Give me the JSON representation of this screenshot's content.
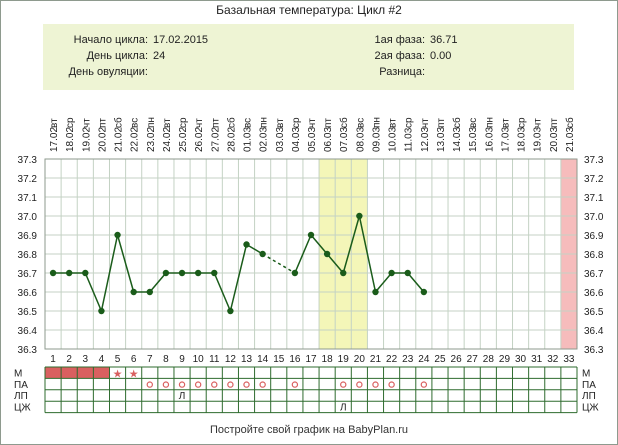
{
  "header": {
    "title": "Базальная температура: Цикл #2",
    "cycle_start_label": "Начало цикла:",
    "cycle_start_value": "17.02.2015",
    "cycle_day_label": "День цикла:",
    "cycle_day_value": "24",
    "ovulation_label": "День овуляции:",
    "ovulation_value": "",
    "phase1_label": "1ая фаза:",
    "phase1_value": "36.71",
    "phase2_label": "2ая фаза:",
    "phase2_value": "0.00",
    "diff_label": "Разница:",
    "diff_value": ""
  },
  "footer": {
    "text": "Постройте свой график на BabyPlan.ru"
  },
  "chart_data": {
    "type": "line",
    "dates": [
      "17.02",
      "18.02",
      "19.02",
      "20.02",
      "21.02",
      "22.02",
      "23.02",
      "24.02",
      "25.02",
      "26.02",
      "27.02",
      "28.02",
      "01.03",
      "02.03",
      "03.03",
      "04.03",
      "05.03",
      "06.03",
      "07.03",
      "08.03",
      "09.03",
      "10.03",
      "11.03",
      "12.03",
      "13.03",
      "14.03",
      "15.03",
      "16.03",
      "17.03",
      "18.03",
      "19.03",
      "20.03",
      "21.03"
    ],
    "weekdays": [
      "вт",
      "ср",
      "чт",
      "пт",
      "сб",
      "вс",
      "пн",
      "вт",
      "ср",
      "чт",
      "пт",
      "сб",
      "вс",
      "пн",
      "вт",
      "ср",
      "чт",
      "пт",
      "сб",
      "вс",
      "пн",
      "вт",
      "ср",
      "чт",
      "пт",
      "сб",
      "вс",
      "пн",
      "вт",
      "ср",
      "чт",
      "пт",
      "сб"
    ],
    "days": [
      1,
      2,
      3,
      4,
      5,
      6,
      7,
      8,
      9,
      10,
      11,
      12,
      13,
      14,
      15,
      16,
      17,
      18,
      19,
      20,
      21,
      22,
      23,
      24,
      25,
      26,
      27,
      28,
      29,
      30,
      31,
      32,
      33
    ],
    "values": [
      36.7,
      36.7,
      36.7,
      36.5,
      36.9,
      36.6,
      36.6,
      36.7,
      36.7,
      36.7,
      36.7,
      36.5,
      36.85,
      36.8,
      null,
      36.7,
      36.9,
      36.8,
      36.7,
      37.0,
      36.6,
      36.7,
      36.7,
      36.6,
      null,
      null,
      null,
      null,
      null,
      null,
      null,
      null,
      null
    ],
    "y_ticks": [
      "36.3",
      "36.4",
      "36.5",
      "36.6",
      "36.7",
      "36.8",
      "36.9",
      "37.0",
      "37.1",
      "37.2",
      "37.3"
    ],
    "ylim": [
      36.3,
      37.3
    ],
    "highlight_days": [
      18,
      19,
      20
    ],
    "highlight_color": "#f4f6b8",
    "end_day": 33,
    "end_color": "#f6bcbc",
    "line_color": "#1a5c1a",
    "grid": true,
    "rows": [
      {
        "label": "М",
        "menstruation_days": [
          1,
          2,
          3,
          4
        ],
        "star_days": [
          5,
          6
        ]
      },
      {
        "label": "ПА",
        "circle_days": [
          7,
          8,
          9,
          10,
          11,
          12,
          13,
          14,
          16,
          19,
          20,
          21,
          22,
          24
        ]
      },
      {
        "label": "ЛП",
        "text_marks": [
          {
            "day": 9,
            "text": "Л"
          }
        ]
      },
      {
        "label": "ЦЖ",
        "text_marks": [
          {
            "day": 19,
            "text": "Л"
          }
        ]
      }
    ]
  }
}
